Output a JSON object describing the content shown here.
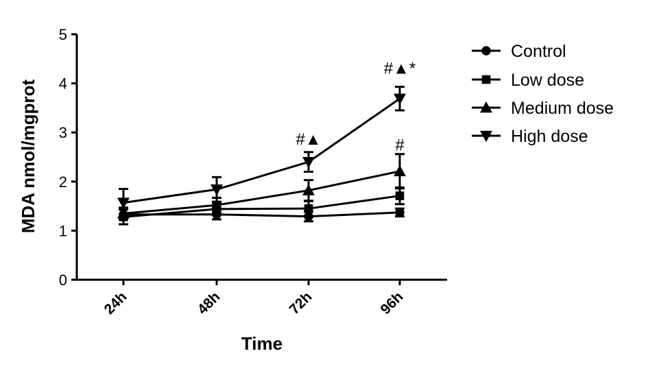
{
  "chart_data": {
    "type": "line",
    "xlabel": "Time",
    "ylabel": "MDA  nmol/mgprot",
    "ylim": [
      0,
      5
    ],
    "yticks": [
      0,
      1,
      2,
      3,
      4,
      5
    ],
    "categories": [
      "24h",
      "48h",
      "72h",
      "96h"
    ],
    "legend_position": "right",
    "series": [
      {
        "name": "Control",
        "marker": "circle",
        "values": [
          1.33,
          1.33,
          1.29,
          1.37
        ],
        "errors": [
          0.1,
          0.1,
          0.1,
          0.08
        ]
      },
      {
        "name": "Low dose",
        "marker": "square",
        "values": [
          1.28,
          1.44,
          1.45,
          1.71
        ],
        "errors": [
          0.15,
          0.12,
          0.15,
          0.17
        ]
      },
      {
        "name": "Medium dose",
        "marker": "triangle-up",
        "values": [
          1.35,
          1.52,
          1.82,
          2.21
        ],
        "errors": [
          0.12,
          0.15,
          0.21,
          0.35
        ]
      },
      {
        "name": "High dose",
        "marker": "triangle-down",
        "values": [
          1.57,
          1.84,
          2.4,
          3.69
        ],
        "errors": [
          0.28,
          0.25,
          0.2,
          0.24
        ]
      }
    ],
    "annotations": [
      {
        "category": "72h",
        "y": 2.75,
        "text": "#▲"
      },
      {
        "category": "96h",
        "y": 4.2,
        "text": "#▲*"
      },
      {
        "category": "96h",
        "y": 2.63,
        "text": "#"
      }
    ]
  }
}
